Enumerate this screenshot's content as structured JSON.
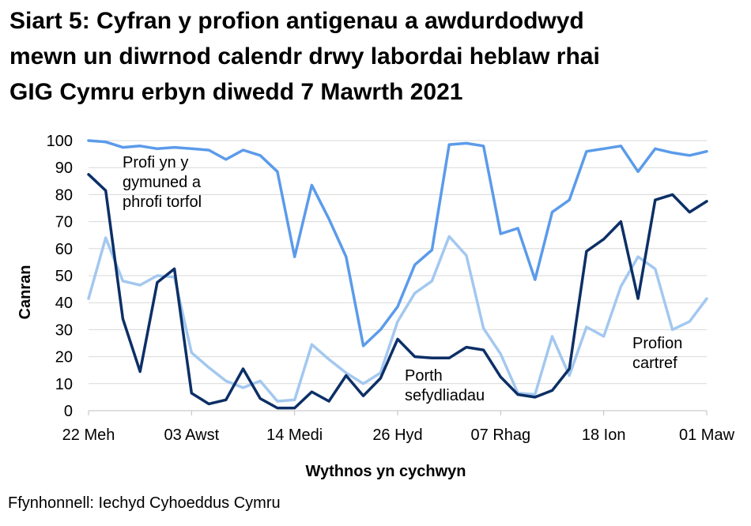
{
  "title_lines": [
    "Siart 5: Cyfran y profion antigenau a awdurdodwyd",
    "mewn un diwrnod calendr drwy labordai heblaw rhai",
    "GIG Cymru erbyn diwedd 7 Mawrth 2021"
  ],
  "source": "Ffynhonnell: Iechyd Cyhoeddus Cymru",
  "chart_data": {
    "type": "line",
    "title": "Siart 5: Cyfran y profion antigenau a awdurdodwyd mewn un diwrnod calendr drwy labordai heblaw rhai GIG Cymru erbyn diwedd 7 Mawrth 2021",
    "xlabel": "Wythnos yn cychwyn",
    "ylabel": "Canran",
    "ylim": [
      0,
      100
    ],
    "yticks": [
      0,
      10,
      20,
      30,
      40,
      50,
      60,
      70,
      80,
      90,
      100
    ],
    "grid": true,
    "legend": "none (series labelled directly on chart)",
    "xtick_labels": [
      "22 Meh",
      "03 Awst",
      "14 Medi",
      "26 Hyd",
      "07 Rhag",
      "18 Ion",
      "01 Maw"
    ],
    "xtick_index": [
      0,
      6,
      12,
      18,
      24,
      30,
      36
    ],
    "series": [
      {
        "name": "Profi yn y gymuned a phrofi torfol",
        "label_lines": [
          "Profi yn y",
          "gymuned a",
          "phrofi torfol"
        ],
        "color": "#5b9bea",
        "values": [
          100,
          99.5,
          97.5,
          98,
          97,
          97.5,
          97,
          96.5,
          93,
          96.5,
          94.5,
          88.5,
          57,
          83.5,
          71,
          57,
          24,
          30,
          38.5,
          54,
          59.5,
          98.5,
          99,
          98,
          65.5,
          67.5,
          48.5,
          73.5,
          78,
          96,
          97,
          98,
          88.5,
          97,
          95.5,
          94.5,
          96
        ]
      },
      {
        "name": "Porth sefydliadau",
        "label_lines": [
          "Porth",
          "sefydliadau"
        ],
        "color": "#0c2f66",
        "values": [
          87.5,
          81.5,
          34,
          14.5,
          47.5,
          52.5,
          6.5,
          2.5,
          4,
          15.5,
          4.5,
          1,
          1,
          7,
          3.5,
          13,
          5.5,
          12,
          26.5,
          20,
          19.5,
          19.5,
          23.5,
          22.5,
          12.5,
          6,
          5,
          7.5,
          15.5,
          59,
          63.5,
          70,
          41.5,
          78,
          80,
          73.5,
          77.5
        ]
      },
      {
        "name": "Profion cartref",
        "label_lines": [
          "Profion",
          "cartref"
        ],
        "color": "#a3c8f0",
        "values": [
          41.5,
          64,
          48,
          46.5,
          50,
          49.5,
          21.5,
          16,
          11,
          8.5,
          11,
          3.5,
          4,
          24.5,
          19,
          14,
          10,
          14,
          33,
          43.5,
          48,
          64.5,
          57.5,
          30.5,
          21,
          6.5,
          6,
          27.5,
          13,
          31,
          27.5,
          46,
          57,
          52.5,
          30,
          33,
          41.5
        ]
      }
    ]
  }
}
